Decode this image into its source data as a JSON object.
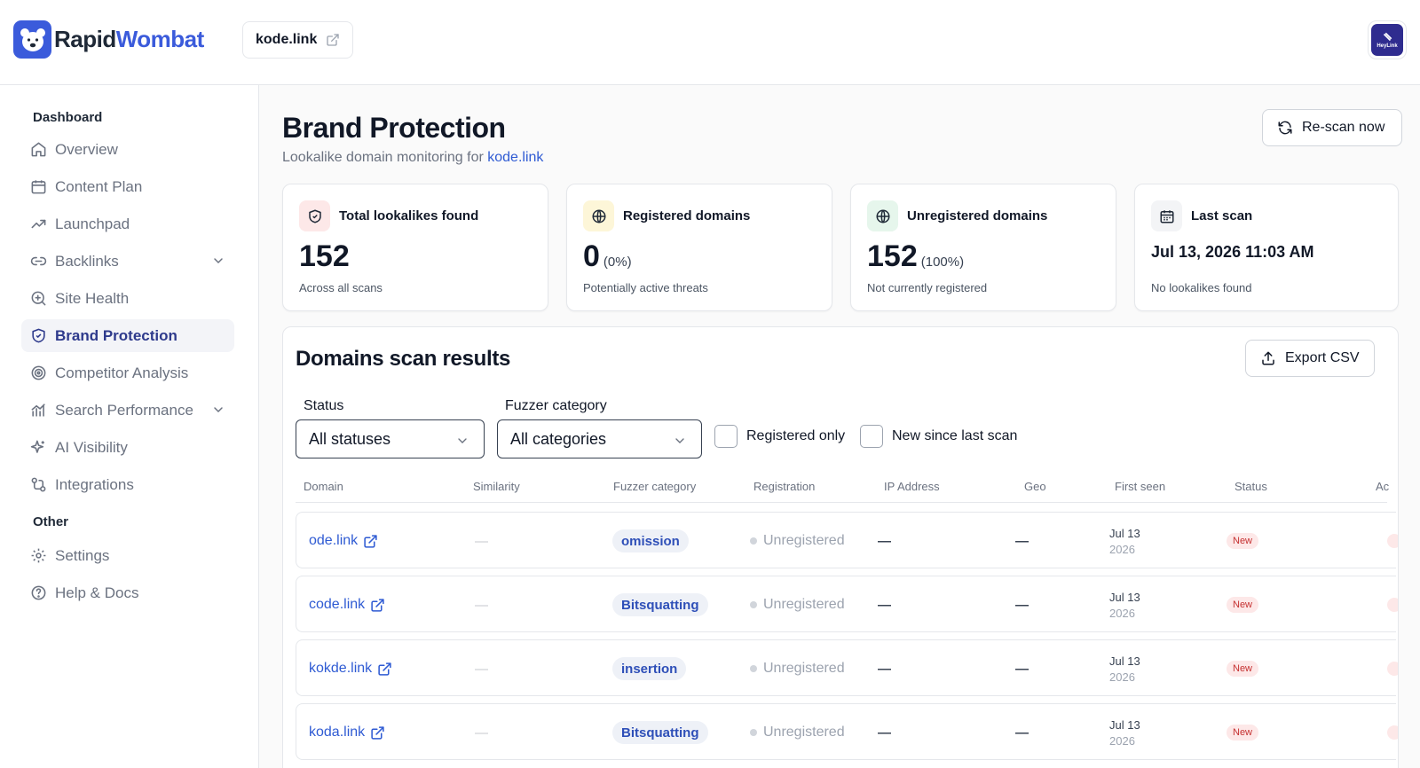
{
  "brand": {
    "name_a": "Rapid",
    "name_b": "Wombat",
    "accent": "#3b5bdb"
  },
  "header": {
    "site": "kode.link",
    "avatar_text": "HeyLink"
  },
  "sidebar": {
    "heading_main": "Dashboard",
    "items": [
      {
        "label": "Overview",
        "icon": "home-icon"
      },
      {
        "label": "Content Plan",
        "icon": "calendar-icon"
      },
      {
        "label": "Launchpad",
        "icon": "trending-up-icon"
      },
      {
        "label": "Backlinks",
        "icon": "link-icon",
        "expandable": true
      },
      {
        "label": "Site Health",
        "icon": "search-health-icon"
      },
      {
        "label": "Brand Protection",
        "icon": "shield-icon",
        "active": true
      },
      {
        "label": "Competitor Analysis",
        "icon": "target-icon"
      },
      {
        "label": "Search Performance",
        "icon": "chart-icon",
        "expandable": true
      },
      {
        "label": "AI Visibility",
        "icon": "sparkles-icon"
      },
      {
        "label": "Integrations",
        "icon": "integrations-icon"
      }
    ],
    "heading_other": "Other",
    "other_items": [
      {
        "label": "Settings",
        "icon": "gear-icon"
      },
      {
        "label": "Help & Docs",
        "icon": "help-icon"
      }
    ]
  },
  "page": {
    "title": "Brand Protection",
    "subtitle": "Lookalike domain monitoring for",
    "subtitle_link": "kode.link",
    "rescan_label": "Re-scan now"
  },
  "stats": [
    {
      "title": "Total lookalikes found",
      "value": "152",
      "pct": "",
      "note": "Across all scans",
      "icon": "shield-icon",
      "icon_bg": "#fde8e8"
    },
    {
      "title": "Registered domains",
      "value": "0",
      "pct": "(0%)",
      "note": "Potentially active threats",
      "icon": "globe-icon",
      "icon_bg": "#fdf6d8"
    },
    {
      "title": "Unregistered domains",
      "value": "152",
      "pct": "(100%)",
      "note": "Not currently registered",
      "icon": "globe-icon",
      "icon_bg": "#e6f6ec"
    },
    {
      "title": "Last scan",
      "value": "Jul 13, 2026 11:03 AM",
      "pct": "",
      "note": "No lookalikes found",
      "icon": "calendar-icon",
      "icon_bg": "#f3f4f6"
    }
  ],
  "results": {
    "title": "Domains scan results",
    "export_label": "Export CSV",
    "filters": {
      "status_label": "Status",
      "status_value": "All statuses",
      "category_label": "Fuzzer category",
      "category_value": "All categories",
      "registered_only": "Registered only",
      "new_since": "New since last scan"
    },
    "columns": [
      "Domain",
      "Similarity",
      "Fuzzer category",
      "Registration",
      "IP Address",
      "Geo",
      "First seen",
      "Status",
      "Ac"
    ],
    "rows": [
      {
        "domain": "ode.link",
        "similarity": "—",
        "category": "omission",
        "registration": "Unregistered",
        "ip": "—",
        "geo": "—",
        "first_seen_day": "Jul 13",
        "first_seen_year": "2026",
        "status": "New"
      },
      {
        "domain": "code.link",
        "similarity": "—",
        "category": "Bitsquatting",
        "registration": "Unregistered",
        "ip": "—",
        "geo": "—",
        "first_seen_day": "Jul 13",
        "first_seen_year": "2026",
        "status": "New"
      },
      {
        "domain": "kokde.link",
        "similarity": "—",
        "category": "insertion",
        "registration": "Unregistered",
        "ip": "—",
        "geo": "—",
        "first_seen_day": "Jul 13",
        "first_seen_year": "2026",
        "status": "New"
      },
      {
        "domain": "koda.link",
        "similarity": "—",
        "category": "Bitsquatting",
        "registration": "Unregistered",
        "ip": "—",
        "geo": "—",
        "first_seen_day": "Jul 13",
        "first_seen_year": "2026",
        "status": "New"
      }
    ]
  }
}
